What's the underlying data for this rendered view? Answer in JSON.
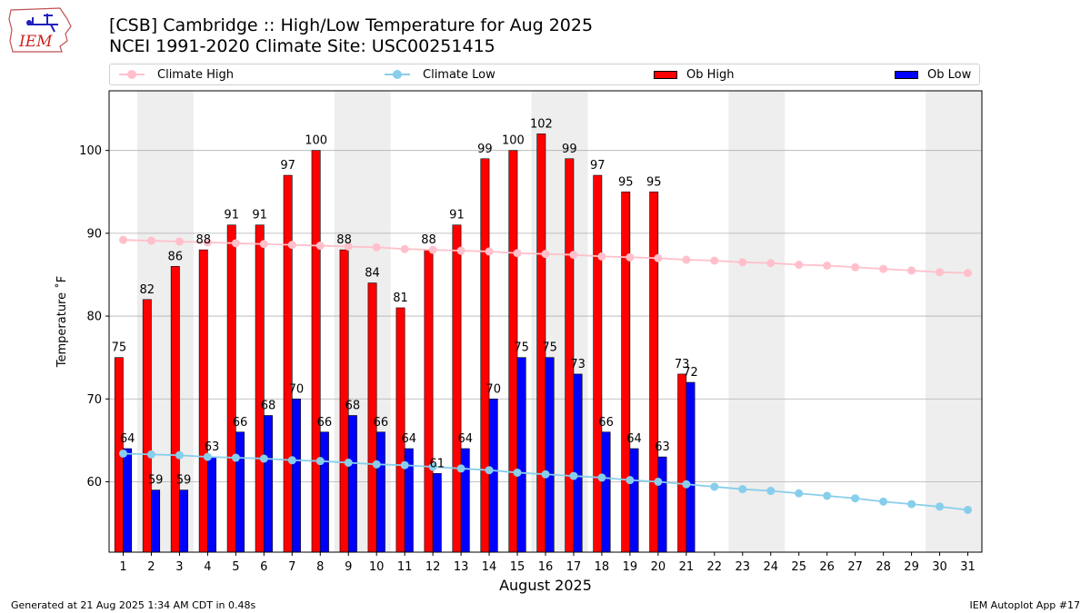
{
  "header": {
    "title_line1": "[CSB] Cambridge :: High/Low Temperature for Aug 2025",
    "title_line2": "NCEI 1991-2020 Climate Site: USC00251415",
    "logo_text": "IEM"
  },
  "legend": {
    "climate_high": "Climate High",
    "climate_low": "Climate Low",
    "ob_high": "Ob High",
    "ob_low": "Ob Low"
  },
  "colors": {
    "climate_high": "#ffc0cb",
    "climate_low": "#87ceeb",
    "ob_high": "#ff0000",
    "ob_low": "#0000ff",
    "weekend_shade": "#eeeeee",
    "grid": "#b0b0b0"
  },
  "footer": {
    "left": "Generated at 21 Aug 2025 1:34 AM CDT in 0.48s",
    "right": "IEM Autoplot App #17"
  },
  "chart_data": {
    "type": "bar",
    "xlabel": "August 2025",
    "ylabel": "Temperature ˚F",
    "ylim": [
      51.5,
      107.2
    ],
    "yticks": [
      60,
      70,
      80,
      90,
      100
    ],
    "grid": "horizontal",
    "legend_placement": "top",
    "days": [
      1,
      2,
      3,
      4,
      5,
      6,
      7,
      8,
      9,
      10,
      11,
      12,
      13,
      14,
      15,
      16,
      17,
      18,
      19,
      20,
      21,
      22,
      23,
      24,
      25,
      26,
      27,
      28,
      29,
      30,
      31
    ],
    "shaded_weekends": [
      [
        2,
        3
      ],
      [
        9,
        10
      ],
      [
        16,
        17
      ],
      [
        23,
        24
      ],
      [
        30,
        31
      ]
    ],
    "series": [
      {
        "name": "Ob High",
        "kind": "bar",
        "values": [
          75,
          82,
          86,
          88,
          91,
          91,
          97,
          100,
          88,
          84,
          81,
          88,
          91,
          99,
          100,
          102,
          99,
          97,
          95,
          95,
          73
        ]
      },
      {
        "name": "Ob Low",
        "kind": "bar",
        "values": [
          64,
          59,
          59,
          63,
          66,
          68,
          70,
          66,
          68,
          66,
          64,
          61,
          64,
          70,
          75,
          75,
          73,
          66,
          64,
          63,
          72
        ]
      },
      {
        "name": "Climate High",
        "kind": "line",
        "values": [
          89.2,
          89.1,
          89.0,
          88.9,
          88.8,
          88.7,
          88.6,
          88.5,
          88.4,
          88.3,
          88.1,
          88.0,
          87.9,
          87.8,
          87.6,
          87.5,
          87.4,
          87.2,
          87.1,
          87.0,
          86.8,
          86.7,
          86.5,
          86.4,
          86.2,
          86.1,
          85.9,
          85.7,
          85.5,
          85.3,
          85.2
        ]
      },
      {
        "name": "Climate Low",
        "kind": "line",
        "values": [
          63.4,
          63.3,
          63.2,
          63.0,
          62.9,
          62.8,
          62.6,
          62.5,
          62.3,
          62.1,
          62.0,
          61.8,
          61.6,
          61.4,
          61.1,
          60.9,
          60.7,
          60.5,
          60.2,
          60.0,
          59.7,
          59.4,
          59.1,
          58.9,
          58.6,
          58.3,
          58.0,
          57.6,
          57.3,
          57.0,
          56.6
        ]
      }
    ]
  }
}
